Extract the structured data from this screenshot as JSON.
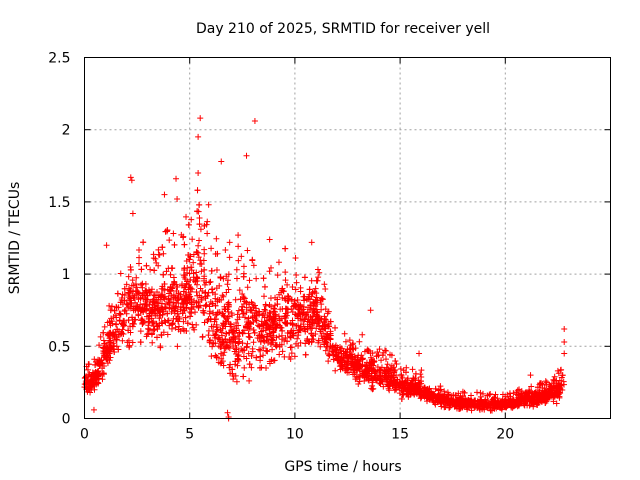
{
  "chart_data": {
    "type": "scatter",
    "title": "Day 210 of 2025, SRMTID for receiver yell",
    "xlabel": "GPS time / hours",
    "ylabel": "SRMTID / TECUs",
    "xlim": [
      0,
      25
    ],
    "ylim": [
      0,
      2.5
    ],
    "xticks": [
      0,
      5,
      10,
      15,
      20
    ],
    "xtick_labels": [
      "0",
      "5",
      "10",
      "15",
      "20"
    ],
    "yticks": [
      0,
      0.5,
      1,
      1.5,
      2,
      2.5
    ],
    "ytick_labels": [
      "0",
      "0.5",
      "1",
      "1.5",
      "2",
      "2.5"
    ],
    "grid": true,
    "marker": "+",
    "series_color": "#ff0000",
    "envelope": {
      "x": [
        0,
        0.5,
        1,
        1.5,
        2,
        2.5,
        3,
        3.5,
        4,
        4.5,
        5,
        5.5,
        6,
        6.5,
        7,
        7.5,
        8,
        8.5,
        9,
        9.5,
        10,
        10.5,
        11,
        11.5,
        12,
        12.5,
        13,
        13.5,
        14,
        14.5,
        15,
        15.5,
        16,
        16.5,
        17,
        17.5,
        18,
        18.5,
        19,
        19.5,
        20,
        20.5,
        21,
        21.5,
        22,
        22.5,
        22.8
      ],
      "low": [
        0.15,
        0.15,
        0.25,
        0.35,
        0.4,
        0.45,
        0.4,
        0.4,
        0.45,
        0.4,
        0.45,
        0.5,
        0.25,
        0.15,
        0.1,
        0.2,
        0.25,
        0.25,
        0.3,
        0.3,
        0.35,
        0.4,
        0.45,
        0.35,
        0.3,
        0.25,
        0.2,
        0.2,
        0.15,
        0.15,
        0.12,
        0.12,
        0.1,
        0.08,
        0.06,
        0.05,
        0.04,
        0.04,
        0.04,
        0.04,
        0.05,
        0.05,
        0.06,
        0.06,
        0.08,
        0.08,
        0.1
      ],
      "high": [
        0.3,
        0.35,
        0.6,
        0.8,
        1.0,
        1.05,
        1.0,
        1.0,
        1.15,
        1.1,
        1.2,
        1.35,
        1.0,
        0.95,
        0.9,
        0.95,
        0.95,
        0.9,
        0.9,
        1.0,
        1.0,
        0.9,
        0.95,
        0.75,
        0.55,
        0.5,
        0.45,
        0.45,
        0.4,
        0.38,
        0.3,
        0.3,
        0.28,
        0.2,
        0.18,
        0.15,
        0.15,
        0.15,
        0.14,
        0.14,
        0.14,
        0.15,
        0.2,
        0.2,
        0.22,
        0.26,
        0.3
      ],
      "density_per_hour": 150
    },
    "notable_points": [
      {
        "x": 5.5,
        "y": 2.08
      },
      {
        "x": 8.1,
        "y": 2.06
      },
      {
        "x": 7.7,
        "y": 1.82
      },
      {
        "x": 6.5,
        "y": 1.78
      },
      {
        "x": 5.4,
        "y": 1.95
      },
      {
        "x": 5.4,
        "y": 1.7
      },
      {
        "x": 2.2,
        "y": 1.67
      },
      {
        "x": 2.25,
        "y": 1.65
      },
      {
        "x": 4.35,
        "y": 1.66
      },
      {
        "x": 3.8,
        "y": 1.55
      },
      {
        "x": 4.4,
        "y": 1.52
      },
      {
        "x": 5.9,
        "y": 1.48
      },
      {
        "x": 2.3,
        "y": 1.42
      },
      {
        "x": 7.3,
        "y": 1.27
      },
      {
        "x": 8.8,
        "y": 1.24
      },
      {
        "x": 10.8,
        "y": 1.22
      },
      {
        "x": 1.05,
        "y": 1.2
      },
      {
        "x": 6.9,
        "y": 1.22
      },
      {
        "x": 22.8,
        "y": 0.62
      },
      {
        "x": 22.8,
        "y": 0.53
      },
      {
        "x": 22.8,
        "y": 0.45
      },
      {
        "x": 6.85,
        "y": 0.0
      },
      {
        "x": 6.85,
        "y": 0.01
      },
      {
        "x": 6.8,
        "y": 0.04
      },
      {
        "x": 0.45,
        "y": 0.06
      },
      {
        "x": 0.1,
        "y": 0.36
      },
      {
        "x": 13.6,
        "y": 0.75
      },
      {
        "x": 13.2,
        "y": 0.58
      },
      {
        "x": 15.9,
        "y": 0.45
      },
      {
        "x": 21.2,
        "y": 0.3
      },
      {
        "x": 22.5,
        "y": 0.33
      }
    ]
  }
}
